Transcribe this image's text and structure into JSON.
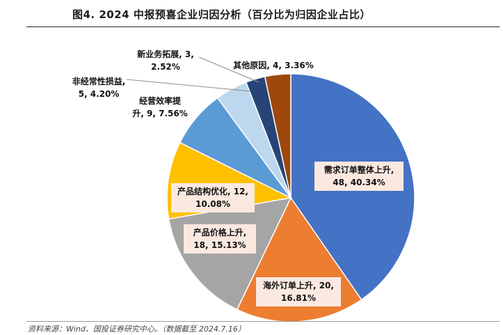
{
  "figure": {
    "title": "图4. 2024 中报预喜企业归因分析（百分比为归因企业占比）",
    "source": "资料来源：Wind、国投证券研究中心。（数据截至 2024.7.16）"
  },
  "chart_data": {
    "type": "pie",
    "title": "图4. 2024 中报预喜企业归因分析（百分比为归因企业占比）",
    "start_angle_deg": 0,
    "direction": "clockwise",
    "slices": [
      {
        "name": "需求订单整体上升",
        "count": 48,
        "percent": 40.34,
        "color": "#4472C4",
        "label": [
          "需求订单整体上升,",
          "48, 40.34%"
        ]
      },
      {
        "name": "海外订单上升",
        "count": 20,
        "percent": 16.81,
        "color": "#ED7D31",
        "label": [
          "海外订单上升, 20,",
          "16.81%"
        ]
      },
      {
        "name": "产品价格上升",
        "count": 18,
        "percent": 15.13,
        "color": "#A5A5A5",
        "label": [
          "产品价格上升,",
          "18, 15.13%"
        ]
      },
      {
        "name": "产品结构优化",
        "count": 12,
        "percent": 10.08,
        "color": "#FFC000",
        "label": [
          "产品结构优化, 12,",
          "10.08%"
        ]
      },
      {
        "name": "经营效率提升",
        "count": 9,
        "percent": 7.56,
        "color": "#5B9BD5",
        "label": [
          "经营效率提",
          "升, 9, 7.56%"
        ]
      },
      {
        "name": "非经常性损益",
        "count": 5,
        "percent": 4.2,
        "color": "#BDD7EE",
        "label": [
          "非经常性损益,",
          "5, 4.20%"
        ]
      },
      {
        "name": "新业务拓展",
        "count": 3,
        "percent": 2.52,
        "color": "#264478",
        "label": [
          "新业务拓展, 3,",
          "2.52%"
        ]
      },
      {
        "name": "其他原因",
        "count": 4,
        "percent": 3.36,
        "color": "#9E480E",
        "label": [
          "其他原因, 4, 3.36%"
        ]
      }
    ]
  }
}
